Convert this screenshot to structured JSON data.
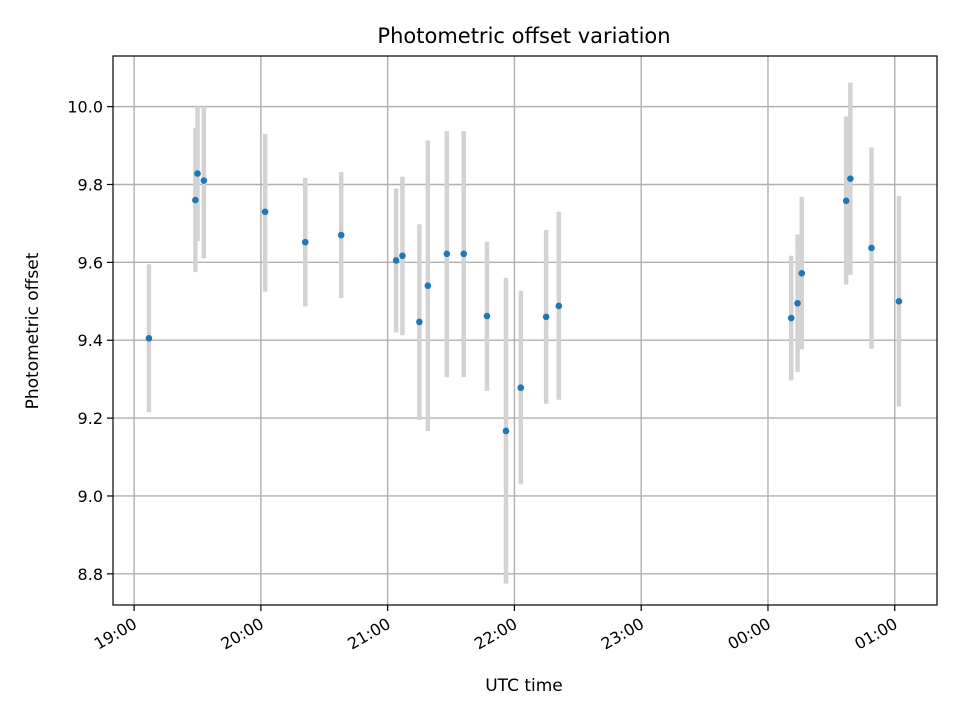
{
  "chart_data": {
    "type": "scatter",
    "title": "Photometric offset variation",
    "xlabel": "UTC time",
    "ylabel": "Photometric offset",
    "xlim": [
      "18:50",
      "01:20"
    ],
    "ylim": [
      8.72,
      10.13
    ],
    "grid": true,
    "x_ticks": [
      "19:00",
      "20:00",
      "21:00",
      "22:00",
      "23:00",
      "00:00",
      "01:00"
    ],
    "y_ticks": [
      "8.8",
      "9.0",
      "9.2",
      "9.4",
      "9.6",
      "9.8",
      "10.0"
    ],
    "colors": {
      "points": "#1f77b4",
      "error_bars": "#d3d3d3",
      "grid": "#b0b0b0"
    },
    "series": [
      {
        "points": [
          {
            "x": "19:07",
            "y": 9.405,
            "ylow": 9.215,
            "yhigh": 9.595
          },
          {
            "x": "19:29",
            "y": 9.76,
            "ylow": 9.575,
            "yhigh": 9.945
          },
          {
            "x": "19:30",
            "y": 9.828,
            "ylow": 9.655,
            "yhigh": 10.0
          },
          {
            "x": "19:33",
            "y": 9.81,
            "ylow": 9.61,
            "yhigh": 10.0
          },
          {
            "x": "20:02",
            "y": 9.73,
            "ylow": 9.525,
            "yhigh": 9.93
          },
          {
            "x": "20:21",
            "y": 9.652,
            "ylow": 9.487,
            "yhigh": 9.817
          },
          {
            "x": "20:38",
            "y": 9.67,
            "ylow": 9.508,
            "yhigh": 9.832
          },
          {
            "x": "21:04",
            "y": 9.605,
            "ylow": 9.42,
            "yhigh": 9.79
          },
          {
            "x": "21:07",
            "y": 9.617,
            "ylow": 9.413,
            "yhigh": 9.82
          },
          {
            "x": "21:15",
            "y": 9.447,
            "ylow": 9.195,
            "yhigh": 9.698
          },
          {
            "x": "21:19",
            "y": 9.54,
            "ylow": 9.167,
            "yhigh": 9.913
          },
          {
            "x": "21:28",
            "y": 9.622,
            "ylow": 9.305,
            "yhigh": 9.937
          },
          {
            "x": "21:36",
            "y": 9.622,
            "ylow": 9.305,
            "yhigh": 9.937
          },
          {
            "x": "21:47",
            "y": 9.462,
            "ylow": 9.27,
            "yhigh": 9.653
          },
          {
            "x": "21:56",
            "y": 9.167,
            "ylow": 8.775,
            "yhigh": 9.56
          },
          {
            "x": "22:03",
            "y": 9.278,
            "ylow": 9.03,
            "yhigh": 9.527
          },
          {
            "x": "22:15",
            "y": 9.46,
            "ylow": 9.237,
            "yhigh": 9.683
          },
          {
            "x": "22:21",
            "y": 9.488,
            "ylow": 9.247,
            "yhigh": 9.73
          },
          {
            "x": "00:11",
            "y": 9.457,
            "ylow": 9.297,
            "yhigh": 9.617
          },
          {
            "x": "00:14",
            "y": 9.495,
            "ylow": 9.318,
            "yhigh": 9.672
          },
          {
            "x": "00:16",
            "y": 9.572,
            "ylow": 9.377,
            "yhigh": 9.768
          },
          {
            "x": "00:37",
            "y": 9.758,
            "ylow": 9.543,
            "yhigh": 9.975
          },
          {
            "x": "00:39",
            "y": 9.815,
            "ylow": 9.568,
            "yhigh": 10.062
          },
          {
            "x": "00:49",
            "y": 9.637,
            "ylow": 9.378,
            "yhigh": 9.895
          },
          {
            "x": "01:02",
            "y": 9.5,
            "ylow": 9.23,
            "yhigh": 9.77
          }
        ]
      }
    ]
  }
}
